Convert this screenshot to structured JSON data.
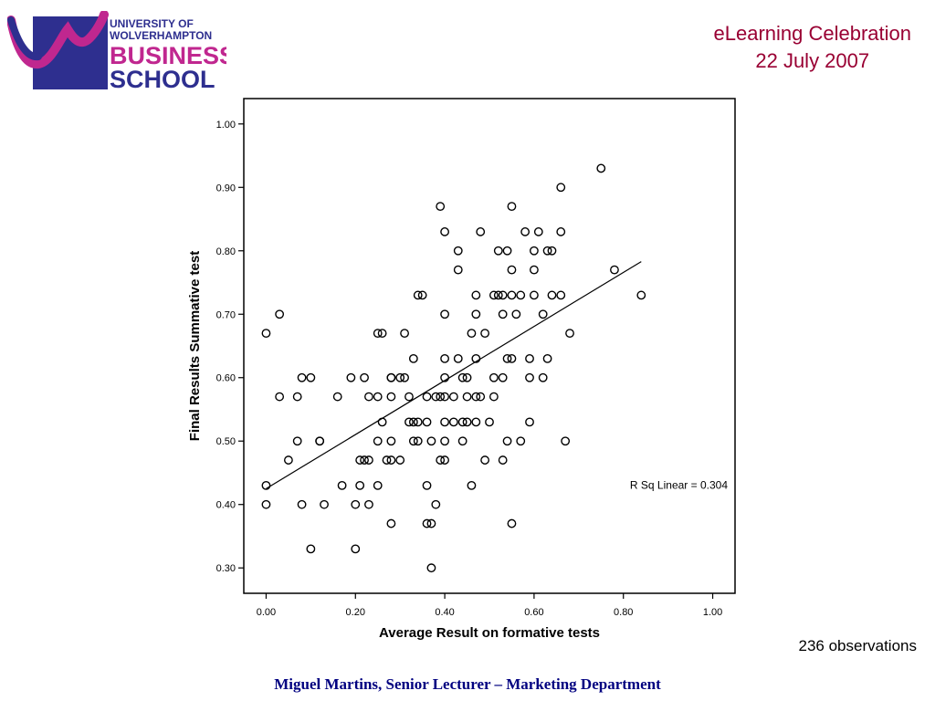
{
  "header": {
    "logo": {
      "line1": "UNIVERSITY OF",
      "line2": "WOLVERHAMPTON",
      "line3": "BUSINESS",
      "line4": "SCHOOL"
    },
    "event_title": "eLearning Celebration",
    "event_date": "22 July 2007"
  },
  "colors": {
    "accent": "#990033",
    "logo_purple": "#2e2f8f",
    "logo_magenta": "#c0278f",
    "footer": "#000080"
  },
  "chart_data": {
    "type": "scatter",
    "title": "",
    "xlabel": "Average Result on formative tests",
    "ylabel": "Final Results Summative test",
    "xlim": [
      -0.05,
      1.05
    ],
    "ylim": [
      0.26,
      1.04
    ],
    "xticks": [
      0.0,
      0.2,
      0.4,
      0.6,
      0.8,
      1.0
    ],
    "yticks": [
      0.3,
      0.4,
      0.5,
      0.6,
      0.7,
      0.8,
      0.9,
      1.0
    ],
    "xtick_labels": [
      "0.00",
      "0.20",
      "0.40",
      "0.60",
      "0.80",
      "1.00"
    ],
    "ytick_labels": [
      "0.30",
      "0.40",
      "0.50",
      "0.60",
      "0.70",
      "0.80",
      "0.90",
      "1.00"
    ],
    "grid": false,
    "annotation": "R Sq Linear = 0.304",
    "fit_line": {
      "x": [
        0.0,
        0.84
      ],
      "y": [
        0.425,
        0.783
      ]
    },
    "points": [
      [
        0.0,
        0.67
      ],
      [
        0.03,
        0.7
      ],
      [
        0.0,
        0.43
      ],
      [
        0.0,
        0.4
      ],
      [
        0.03,
        0.57
      ],
      [
        0.05,
        0.47
      ],
      [
        0.07,
        0.57
      ],
      [
        0.07,
        0.5
      ],
      [
        0.08,
        0.6
      ],
      [
        0.08,
        0.4
      ],
      [
        0.1,
        0.6
      ],
      [
        0.1,
        0.33
      ],
      [
        0.12,
        0.5
      ],
      [
        0.12,
        0.5
      ],
      [
        0.13,
        0.4
      ],
      [
        0.16,
        0.57
      ],
      [
        0.17,
        0.43
      ],
      [
        0.19,
        0.6
      ],
      [
        0.2,
        0.4
      ],
      [
        0.2,
        0.33
      ],
      [
        0.21,
        0.43
      ],
      [
        0.21,
        0.47
      ],
      [
        0.22,
        0.6
      ],
      [
        0.22,
        0.47
      ],
      [
        0.23,
        0.57
      ],
      [
        0.23,
        0.47
      ],
      [
        0.23,
        0.4
      ],
      [
        0.25,
        0.67
      ],
      [
        0.25,
        0.57
      ],
      [
        0.25,
        0.5
      ],
      [
        0.25,
        0.43
      ],
      [
        0.26,
        0.67
      ],
      [
        0.26,
        0.53
      ],
      [
        0.27,
        0.47
      ],
      [
        0.28,
        0.6
      ],
      [
        0.28,
        0.57
      ],
      [
        0.28,
        0.5
      ],
      [
        0.28,
        0.47
      ],
      [
        0.28,
        0.37
      ],
      [
        0.28,
        0.6
      ],
      [
        0.3,
        0.6
      ],
      [
        0.3,
        0.47
      ],
      [
        0.31,
        0.67
      ],
      [
        0.31,
        0.6
      ],
      [
        0.32,
        0.57
      ],
      [
        0.32,
        0.53
      ],
      [
        0.33,
        0.63
      ],
      [
        0.33,
        0.53
      ],
      [
        0.33,
        0.5
      ],
      [
        0.34,
        0.73
      ],
      [
        0.34,
        0.53
      ],
      [
        0.34,
        0.5
      ],
      [
        0.35,
        0.73
      ],
      [
        0.36,
        0.57
      ],
      [
        0.36,
        0.53
      ],
      [
        0.36,
        0.43
      ],
      [
        0.36,
        0.37
      ],
      [
        0.37,
        0.5
      ],
      [
        0.37,
        0.37
      ],
      [
        0.37,
        0.3
      ],
      [
        0.38,
        0.57
      ],
      [
        0.38,
        0.4
      ],
      [
        0.39,
        0.87
      ],
      [
        0.39,
        0.57
      ],
      [
        0.39,
        0.47
      ],
      [
        0.4,
        0.83
      ],
      [
        0.4,
        0.7
      ],
      [
        0.4,
        0.63
      ],
      [
        0.4,
        0.6
      ],
      [
        0.4,
        0.57
      ],
      [
        0.4,
        0.53
      ],
      [
        0.4,
        0.5
      ],
      [
        0.4,
        0.47
      ],
      [
        0.42,
        0.57
      ],
      [
        0.42,
        0.53
      ],
      [
        0.43,
        0.8
      ],
      [
        0.43,
        0.77
      ],
      [
        0.43,
        0.63
      ],
      [
        0.44,
        0.6
      ],
      [
        0.44,
        0.53
      ],
      [
        0.44,
        0.5
      ],
      [
        0.45,
        0.6
      ],
      [
        0.45,
        0.57
      ],
      [
        0.45,
        0.53
      ],
      [
        0.46,
        0.67
      ],
      [
        0.46,
        0.43
      ],
      [
        0.47,
        0.73
      ],
      [
        0.47,
        0.7
      ],
      [
        0.47,
        0.63
      ],
      [
        0.47,
        0.57
      ],
      [
        0.47,
        0.53
      ],
      [
        0.48,
        0.83
      ],
      [
        0.48,
        0.57
      ],
      [
        0.49,
        0.67
      ],
      [
        0.49,
        0.47
      ],
      [
        0.5,
        0.53
      ],
      [
        0.51,
        0.73
      ],
      [
        0.51,
        0.6
      ],
      [
        0.51,
        0.57
      ],
      [
        0.52,
        0.8
      ],
      [
        0.52,
        0.73
      ],
      [
        0.53,
        0.73
      ],
      [
        0.53,
        0.7
      ],
      [
        0.53,
        0.6
      ],
      [
        0.53,
        0.47
      ],
      [
        0.54,
        0.8
      ],
      [
        0.54,
        0.63
      ],
      [
        0.54,
        0.5
      ],
      [
        0.55,
        0.87
      ],
      [
        0.55,
        0.77
      ],
      [
        0.55,
        0.73
      ],
      [
        0.55,
        0.63
      ],
      [
        0.55,
        0.37
      ],
      [
        0.56,
        0.7
      ],
      [
        0.57,
        0.73
      ],
      [
        0.57,
        0.5
      ],
      [
        0.58,
        0.83
      ],
      [
        0.59,
        0.63
      ],
      [
        0.59,
        0.6
      ],
      [
        0.59,
        0.53
      ],
      [
        0.6,
        0.8
      ],
      [
        0.6,
        0.77
      ],
      [
        0.6,
        0.73
      ],
      [
        0.61,
        0.83
      ],
      [
        0.62,
        0.7
      ],
      [
        0.62,
        0.6
      ],
      [
        0.63,
        0.8
      ],
      [
        0.63,
        0.63
      ],
      [
        0.64,
        0.8
      ],
      [
        0.64,
        0.73
      ],
      [
        0.66,
        0.9
      ],
      [
        0.66,
        0.83
      ],
      [
        0.66,
        0.73
      ],
      [
        0.67,
        0.5
      ],
      [
        0.68,
        0.67
      ],
      [
        0.75,
        0.93
      ],
      [
        0.78,
        0.77
      ],
      [
        0.84,
        0.73
      ]
    ]
  },
  "observations_note": "236 observations",
  "footer_text": "Miguel Martins, Senior Lecturer – Marketing Department"
}
